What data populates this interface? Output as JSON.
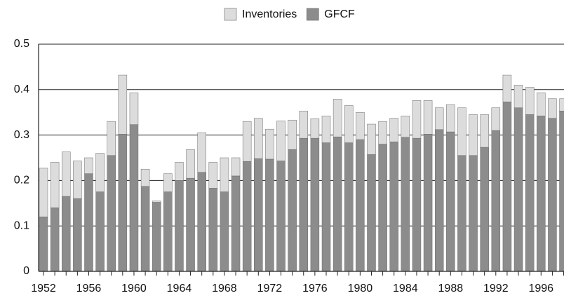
{
  "chart_data": {
    "type": "stacked_bar",
    "categories": [
      "1952",
      null,
      null,
      null,
      "1956",
      null,
      null,
      null,
      "1960",
      null,
      null,
      null,
      "1964",
      null,
      null,
      null,
      "1968",
      null,
      null,
      null,
      "1972",
      null,
      null,
      null,
      "1976",
      null,
      null,
      null,
      "1980",
      null,
      null,
      null,
      "1984",
      null,
      null,
      null,
      "1988",
      null,
      null,
      null,
      "1992",
      null,
      null,
      null,
      "1996",
      null,
      null
    ],
    "series": [
      {
        "name": "GFCF",
        "color": "#8c8c8c",
        "values": [
          0.12,
          0.14,
          0.165,
          0.16,
          0.215,
          0.175,
          0.255,
          0.302,
          0.323,
          0.187,
          0.152,
          0.175,
          0.2,
          0.205,
          0.218,
          0.183,
          0.175,
          0.21,
          0.242,
          0.248,
          0.247,
          0.243,
          0.268,
          0.293,
          0.293,
          0.283,
          0.296,
          0.283,
          0.29,
          0.257,
          0.28,
          0.285,
          0.295,
          0.293,
          0.302,
          0.312,
          0.307,
          0.255,
          0.255,
          0.273,
          0.31,
          0.373,
          0.36,
          0.345,
          0.342,
          0.337,
          0.353
        ]
      },
      {
        "name": "Inventories",
        "color": "#dcdcdc",
        "values": [
          0.107,
          0.1,
          0.098,
          0.083,
          0.035,
          0.085,
          0.075,
          0.13,
          0.07,
          0.038,
          0.003,
          0.04,
          0.04,
          0.063,
          0.087,
          0.057,
          0.075,
          0.04,
          0.088,
          0.089,
          0.066,
          0.088,
          0.065,
          0.06,
          0.043,
          0.059,
          0.083,
          0.082,
          0.06,
          0.067,
          0.05,
          0.052,
          0.047,
          0.083,
          0.074,
          0.048,
          0.06,
          0.105,
          0.09,
          0.072,
          0.05,
          0.059,
          0.05,
          0.06,
          0.051,
          0.043,
          0.027
        ]
      }
    ],
    "ylim": [
      0,
      0.5
    ],
    "yticks": [
      0,
      0.1,
      0.2,
      0.3,
      0.4,
      0.5
    ],
    "grid": true
  }
}
